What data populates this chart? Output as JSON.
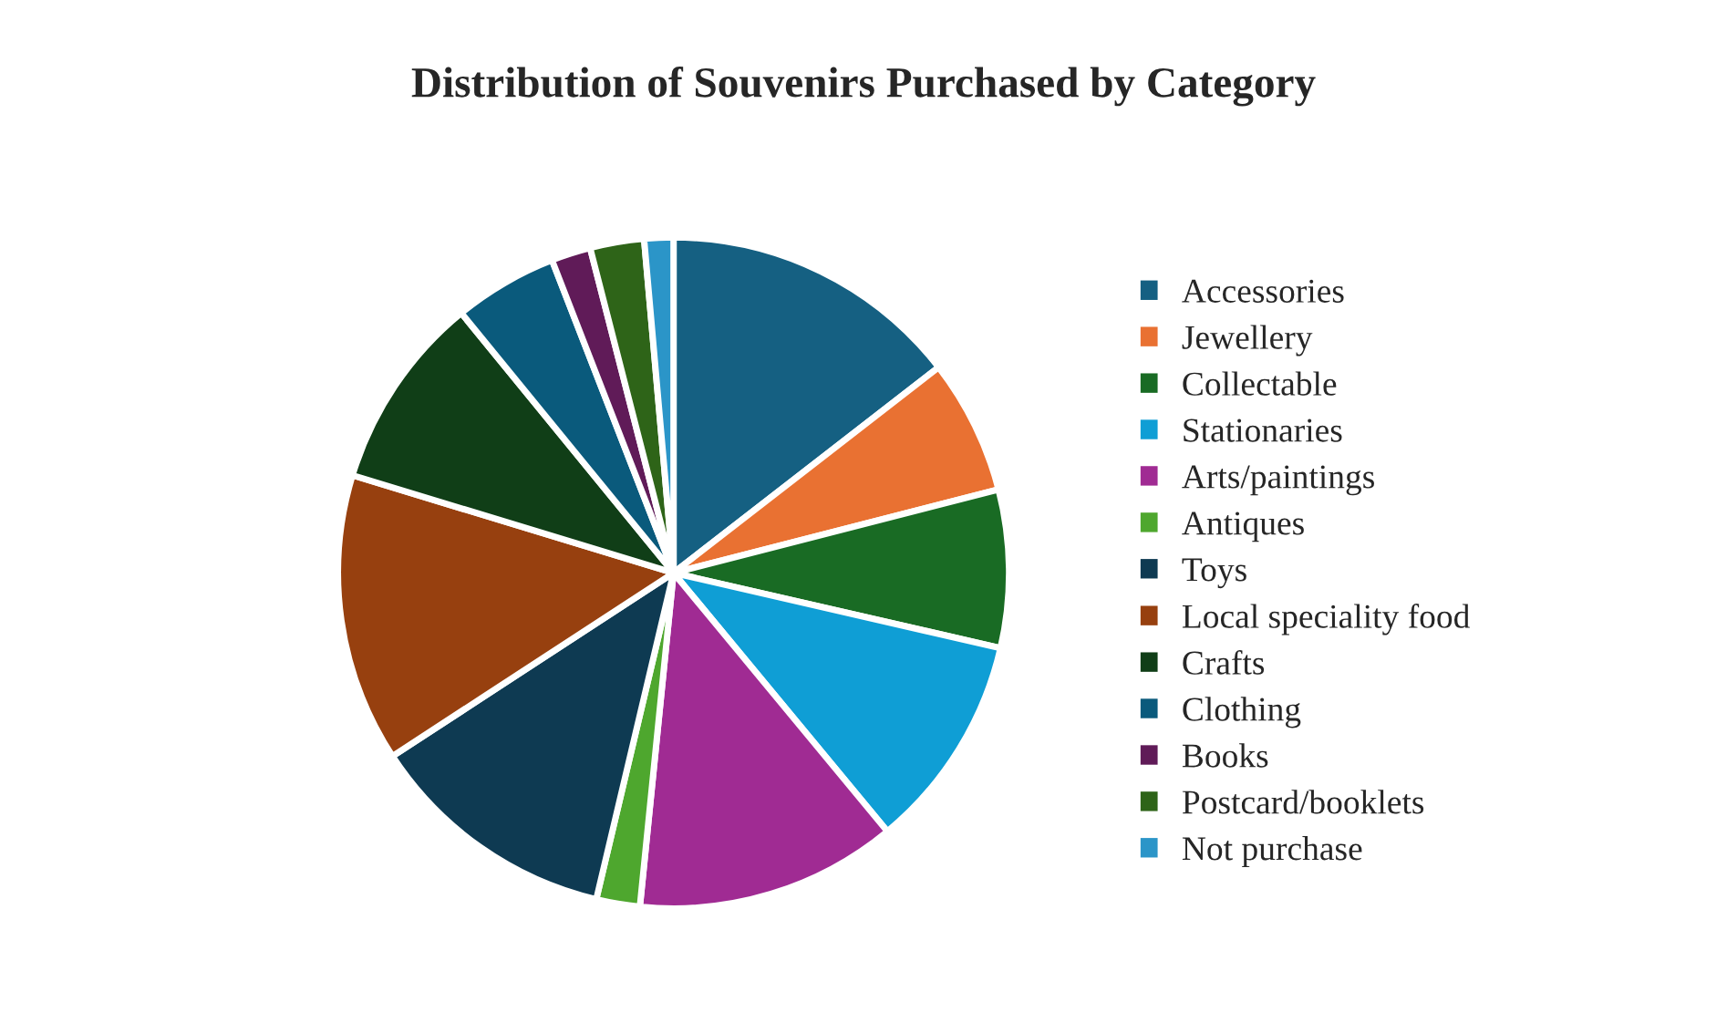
{
  "chart_data": {
    "type": "pie",
    "title": "Distribution of Souvenirs Purchased by Category",
    "categories": [
      "Accessories",
      "Jewellery",
      "Collectable",
      "Stationaries",
      "Arts/paintings",
      "Antiques",
      "Toys",
      "Local speciality food",
      "Crafts",
      "Clothing",
      "Books",
      "Postcard/booklets",
      "Not purchase"
    ],
    "values": [
      14.5,
      6.5,
      7.6,
      10.4,
      12.6,
      2.1,
      12.1,
      13.9,
      9.4,
      5.0,
      1.9,
      2.6,
      1.4
    ],
    "colors": [
      "#156082",
      "#e97132",
      "#196b24",
      "#0f9ed5",
      "#a02b93",
      "#4ea72e",
      "#0e3a52",
      "#97400f",
      "#103e17",
      "#0a5a7c",
      "#601b58",
      "#2e6418",
      "#2b95c8"
    ],
    "legend": "right"
  }
}
